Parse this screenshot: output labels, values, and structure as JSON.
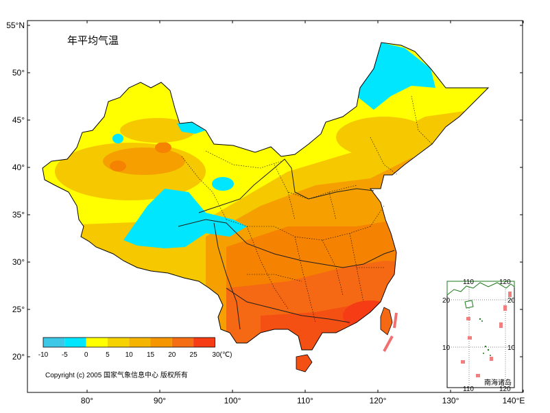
{
  "map": {
    "title": "年平均气温",
    "copyright": "Copyright (c) 2005 国家气象信息中心 版权所有",
    "lon_ticks": [
      "80°",
      "90°",
      "100°",
      "110°",
      "120°",
      "130°",
      "140°E"
    ],
    "lat_ticks": [
      "55°N",
      "50°",
      "45°",
      "40°",
      "35°",
      "30°",
      "25°",
      "20°"
    ],
    "lon_range": [
      72,
      140
    ],
    "lat_range": [
      16,
      55
    ],
    "gridlines": false
  },
  "legend": {
    "unit_label": "30(℃)",
    "labels": [
      "-10",
      "-5",
      "0",
      "5",
      "10",
      "15",
      "20",
      "25"
    ],
    "colors": [
      "#3cc8e6",
      "#00e6ff",
      "#ffff00",
      "#f5d200",
      "#f5b400",
      "#f59600",
      "#f56e14",
      "#f53c14"
    ],
    "placement": "bottom-left"
  },
  "inset": {
    "title": "南海诸岛",
    "top_ticks": [
      "110",
      "120"
    ],
    "bottom_ticks": [
      "110",
      "120"
    ],
    "left_ticks": [
      "20",
      "10"
    ],
    "right_ticks": [
      "20",
      "10"
    ]
  },
  "colors": {
    "cold": "#00e6ff",
    "cool": "#ffff00",
    "mild": "#f5c800",
    "warm": "#f5a000",
    "hot": "#f57800",
    "hottest": "#f55014",
    "boundary": "#000000",
    "river": "#1e1e1e"
  }
}
